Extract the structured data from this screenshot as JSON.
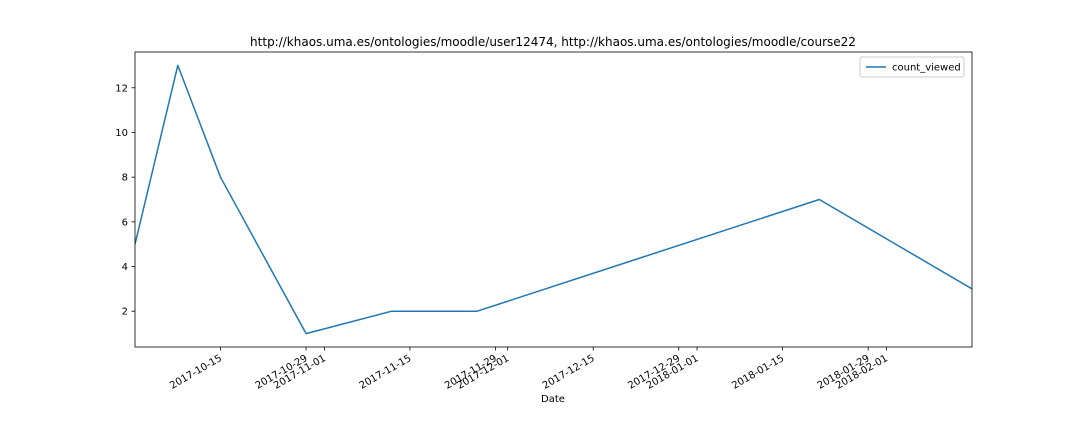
{
  "chart_data": {
    "type": "line",
    "title": "http://khaos.uma.es/ontologies/moodle/user12474, http://khaos.uma.es/ontologies/moodle/course22",
    "xlabel": "Date",
    "ylabel": "",
    "x_ticks": [
      "2017-10-15",
      "2017-10-29",
      "2017-11-01",
      "2017-11-15",
      "2017-11-29",
      "2017-12-01",
      "2017-12-15",
      "2017-12-29",
      "2018-01-01",
      "2018-01-15",
      "2018-01-29",
      "2018-02-01"
    ],
    "y_ticks": [
      "2",
      "4",
      "6",
      "8",
      "10",
      "12"
    ],
    "xlim": [
      "2017-10-01",
      "2018-02-15"
    ],
    "ylim": [
      0.4,
      13.6
    ],
    "grid": false,
    "legend_position": "top-right",
    "series": [
      {
        "name": "count_viewed",
        "color": "#1f77b4",
        "x": [
          "2017-10-01",
          "2017-10-08",
          "2017-10-15",
          "2017-10-29",
          "2017-11-12",
          "2017-11-26",
          "2018-01-21",
          "2018-02-15"
        ],
        "y": [
          5,
          13,
          8,
          1,
          2,
          2,
          7,
          3
        ]
      }
    ]
  }
}
